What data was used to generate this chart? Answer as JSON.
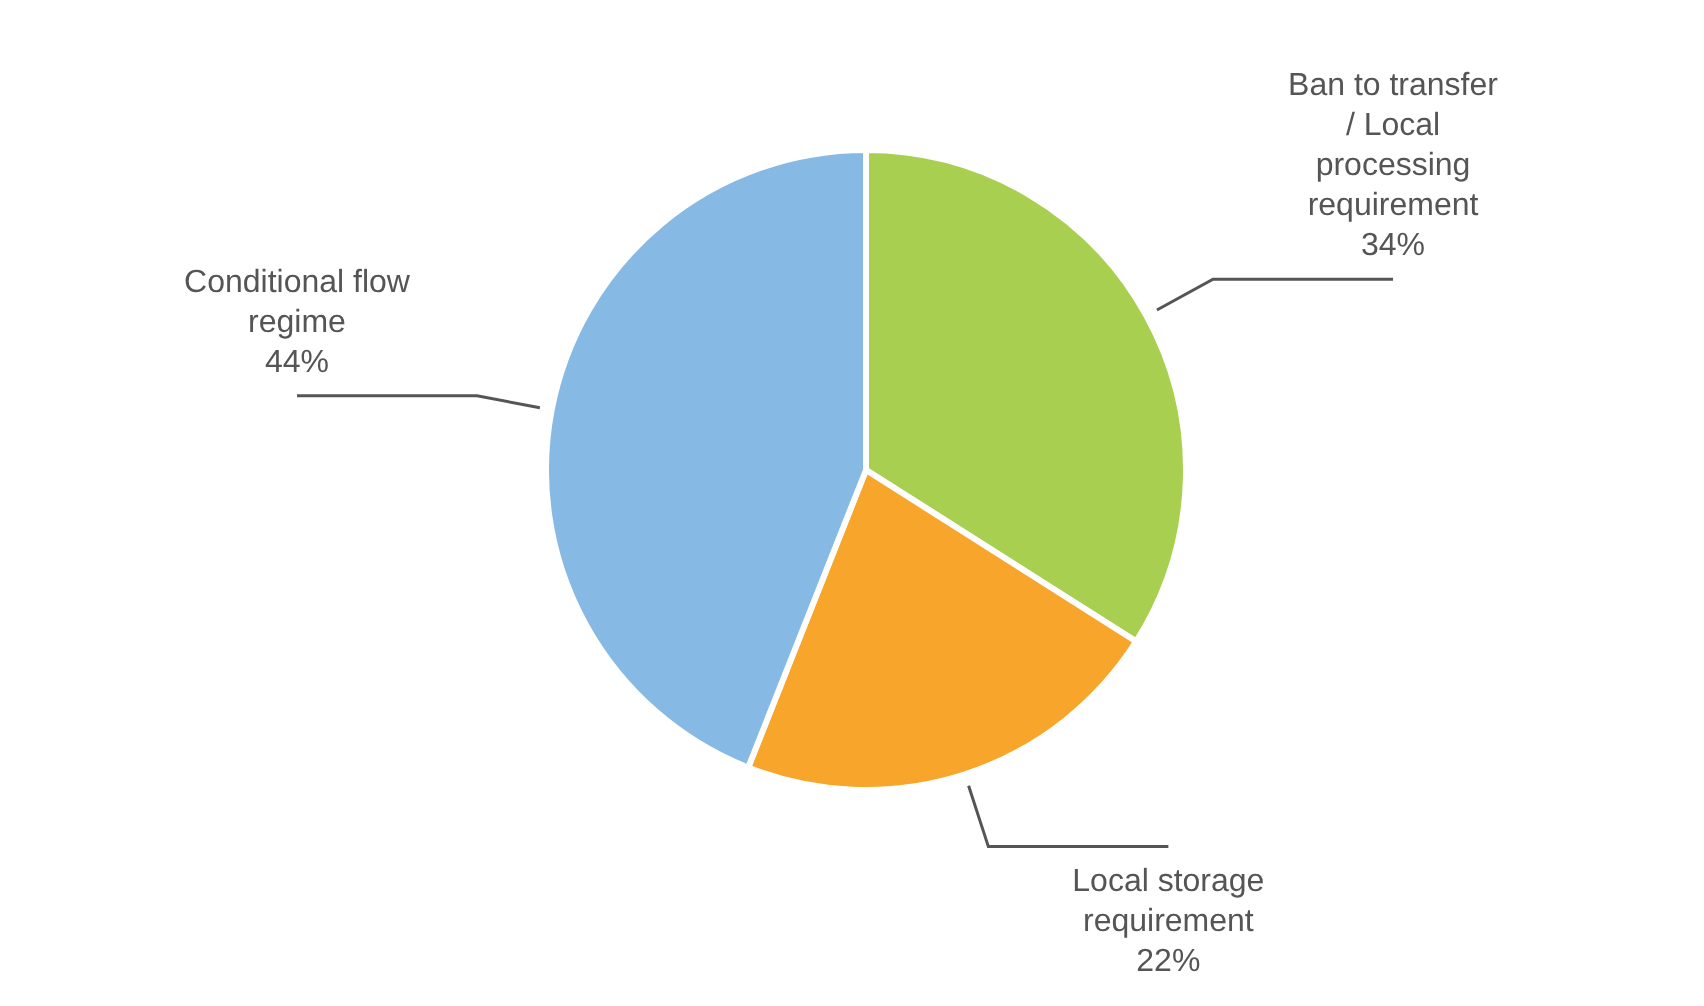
{
  "chart_data": {
    "type": "pie",
    "categories": [
      "Ban to transfer / Local processing requirement",
      "Local storage requirement",
      "Conditional flow regime"
    ],
    "values": [
      34,
      22,
      44
    ],
    "value_labels": [
      "34%",
      "22%",
      "44%"
    ],
    "colors": [
      "#a8cf4f",
      "#f8a52b",
      "#86b9e3"
    ]
  }
}
